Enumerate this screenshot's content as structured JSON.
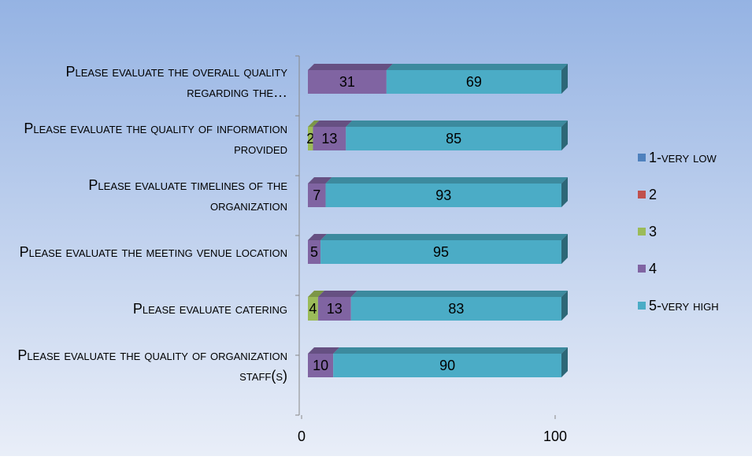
{
  "chart_data": {
    "type": "bar",
    "orientation": "horizontal",
    "stacked": true,
    "categories": [
      "Please evaluate the overall quality regarding the…",
      "Please evaluate the quality of information provided",
      "Please evaluate timelines of the organization",
      "Please evaluate the meeting venue location",
      "Please evaluate catering",
      "Please evaluate the quality of organization staff(s)"
    ],
    "series": [
      {
        "name": "1-very low",
        "color": "#4f81bd",
        "values": [
          0,
          0,
          0,
          0,
          0,
          0
        ]
      },
      {
        "name": "2",
        "color": "#c0504d",
        "values": [
          0,
          0,
          0,
          0,
          0,
          0
        ]
      },
      {
        "name": "3",
        "color": "#9bbb59",
        "values": [
          0,
          2,
          0,
          0,
          4,
          0
        ]
      },
      {
        "name": "4",
        "color": "#8064a2",
        "values": [
          31,
          13,
          7,
          5,
          13,
          10
        ]
      },
      {
        "name": "5-very high",
        "color": "#4bacc6",
        "values": [
          69,
          85,
          93,
          95,
          83,
          90
        ]
      }
    ],
    "xlim": [
      0,
      100
    ],
    "xticks": [
      0,
      100
    ],
    "legend": "right"
  }
}
